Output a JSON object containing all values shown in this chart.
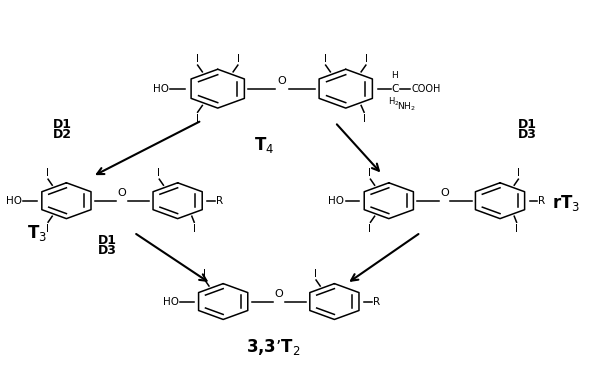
{
  "bg_color": "#ffffff",
  "fig_width": 6.01,
  "fig_height": 3.79,
  "dpi": 100,
  "color": "#000000",
  "T4_label": "T$_4$",
  "T3_label": "T$_3$",
  "rT3_label": "rT$_3$",
  "T2_label": "3,3’T$_2$",
  "arrow_lw": 1.5,
  "struct_lw": 1.1
}
